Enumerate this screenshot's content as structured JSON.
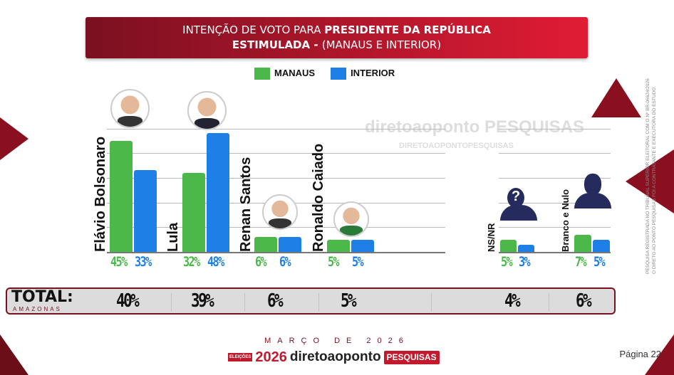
{
  "header": {
    "line1_plain": "INTENÇÃO DE VOTO PARA ",
    "line1_bold": "PRESIDENTE DA REPÚBLICA",
    "line2_bold": "ESTIMULADA - ",
    "line2_plain": "(MANAUS E INTERIOR)"
  },
  "legend": [
    {
      "label": "MANAUS",
      "color": "#4cb849"
    },
    {
      "label": "INTERIOR",
      "color": "#1e7fe6"
    }
  ],
  "watermark": {
    "brand": "diretoaoponto",
    "tag": "PESQUISAS",
    "url": "DIRETOAOPONTOPESQUISAS"
  },
  "chart_data": {
    "type": "bar",
    "categories": [
      "Flávio Bolsonaro",
      "Lula",
      "Renan Santos",
      "Ronaldo Caiado",
      "NS/NR",
      "Branco e Nulo"
    ],
    "series": [
      {
        "name": "MANAUS",
        "values": [
          45,
          32,
          6,
          5,
          5,
          7
        ],
        "labels": [
          "45%",
          "32%",
          "6%",
          "5%",
          "5%",
          "7%"
        ]
      },
      {
        "name": "INTERIOR",
        "values": [
          33,
          48,
          6,
          5,
          3,
          5
        ],
        "labels": [
          "33%",
          "48%",
          "6%",
          "5%",
          "3%",
          "5%"
        ]
      }
    ],
    "ylim": [
      0,
      50
    ]
  },
  "total": {
    "label": "TOTAL:",
    "sublabel": "AMAZONAS",
    "values": [
      "40%",
      "39%",
      "6%",
      "5%",
      "4%",
      "6%"
    ]
  },
  "footer": {
    "date": "MARÇO DE 2026",
    "logo_year": "2026",
    "logo_brand": "diretoaoponto",
    "logo_tag": "PESQUISAS",
    "logo_badge": "ELEIÇÕES",
    "page": "Página 22"
  },
  "side_note": {
    "line1": "PESQUISA REGISTRADA NO TRIBUNAL SUPERIOR ELEITORAL COM O Nº BR-06624/2026",
    "line2": "O DIRETO AO PONTO PESQUISAS FOI A CONTRATANTE E EXECUTORA DO ESTUDO."
  }
}
